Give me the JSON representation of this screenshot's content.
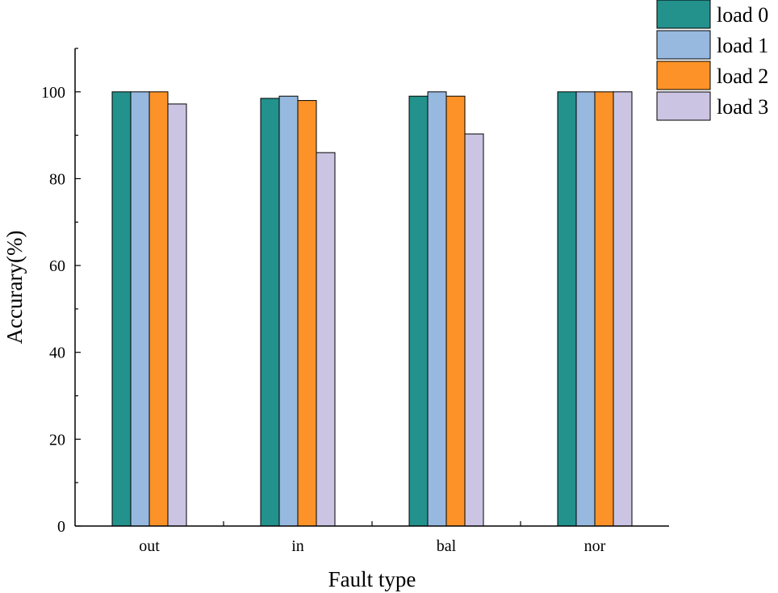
{
  "chart_data": {
    "type": "bar",
    "title": "",
    "xlabel": "Fault type",
    "ylabel": "Accurary(%)",
    "categories": [
      "out",
      "in",
      "bal",
      "nor"
    ],
    "ylim": [
      0,
      110
    ],
    "yticks": [
      0,
      20,
      40,
      60,
      80,
      100
    ],
    "grid": false,
    "legend_position": "top-right",
    "series": [
      {
        "name": "load 0",
        "color": "#23918C",
        "values": [
          100,
          98.5,
          99,
          100
        ]
      },
      {
        "name": "load 1",
        "color": "#97B9E0",
        "values": [
          100,
          99,
          100,
          100
        ]
      },
      {
        "name": "load 2",
        "color": "#FC9228",
        "values": [
          100,
          98,
          99,
          100
        ]
      },
      {
        "name": "load 3",
        "color": "#CBC4E2",
        "values": [
          97.2,
          86,
          90.3,
          100
        ]
      }
    ]
  }
}
